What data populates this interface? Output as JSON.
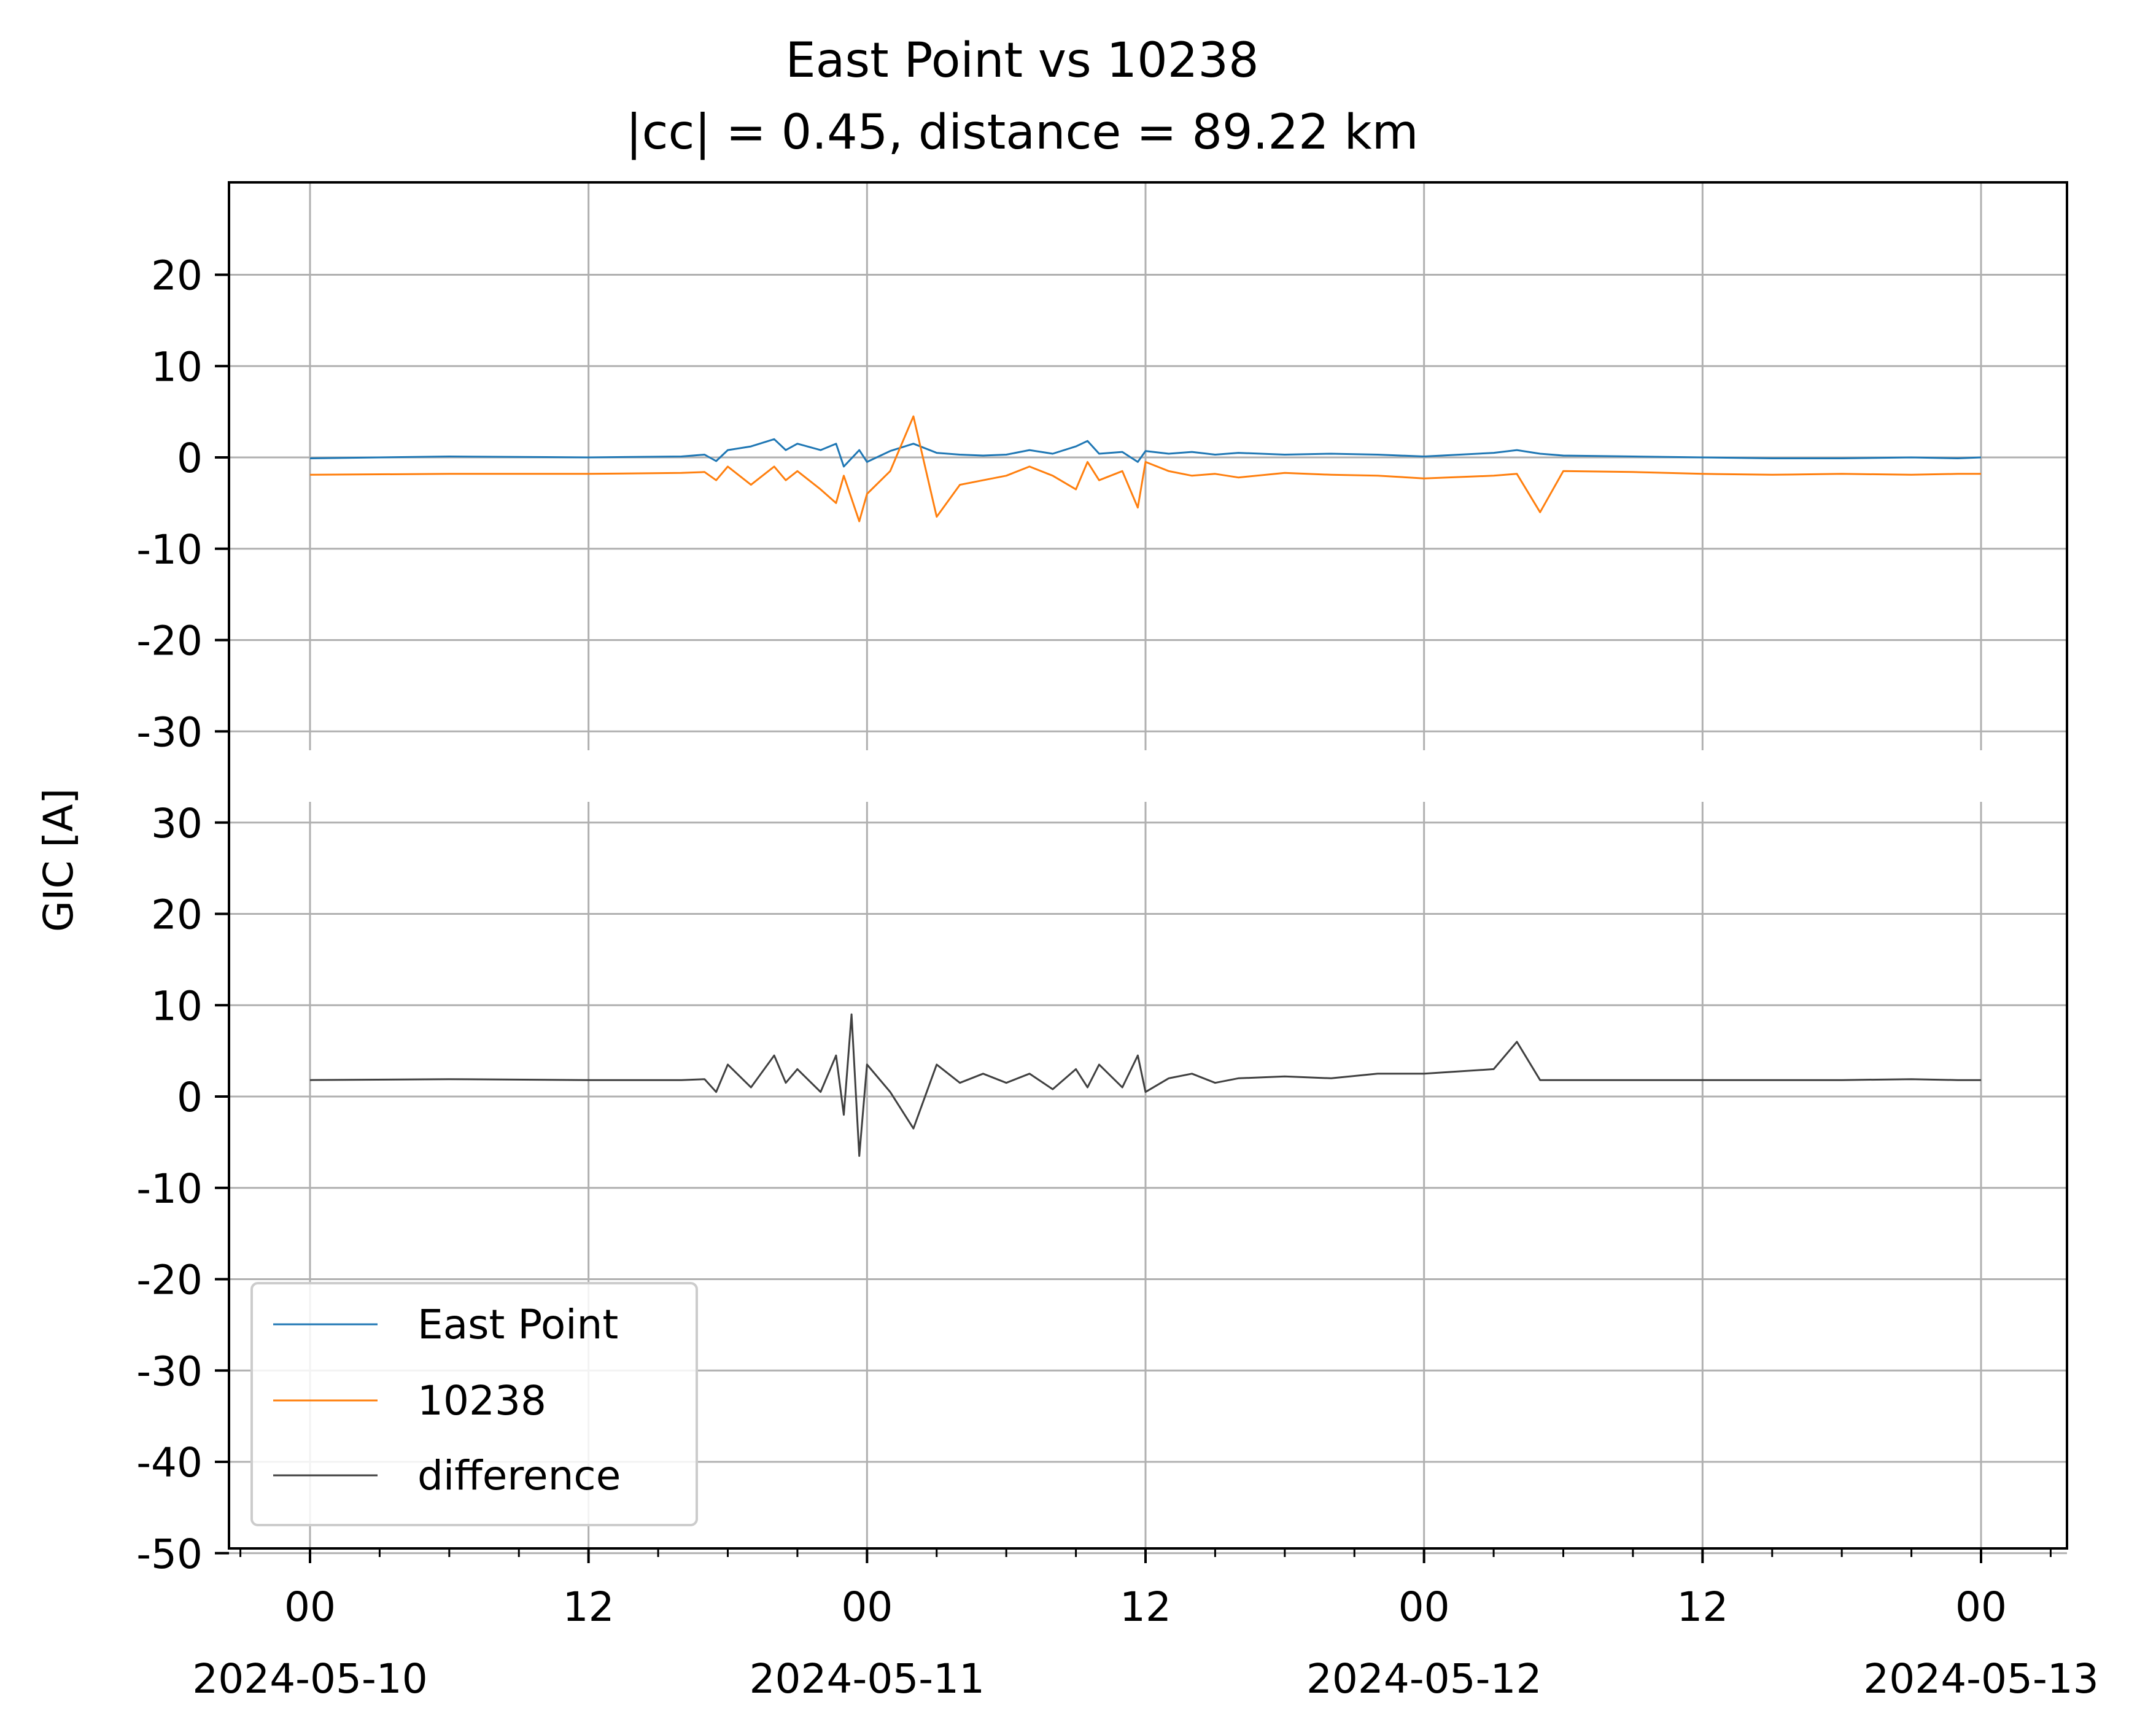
{
  "chart_data": {
    "type": "line",
    "title": "East Point vs 10238",
    "subtitle": "|cc| = 0.45, distance = 89.22 km",
    "ylabel": "GIC [A]",
    "x_range": [
      "2024-05-10 00:00",
      "2024-05-13 00:00"
    ],
    "x_major_ticks": [
      {
        "time": "2024-05-10 00:00",
        "label": "00",
        "date": "2024-05-10"
      },
      {
        "time": "2024-05-10 12:00",
        "label": "12",
        "date": ""
      },
      {
        "time": "2024-05-11 00:00",
        "label": "00",
        "date": "2024-05-11"
      },
      {
        "time": "2024-05-11 12:00",
        "label": "12",
        "date": ""
      },
      {
        "time": "2024-05-12 00:00",
        "label": "00",
        "date": "2024-05-12"
      },
      {
        "time": "2024-05-12 12:00",
        "label": "12",
        "date": ""
      },
      {
        "time": "2024-05-13 00:00",
        "label": "00",
        "date": "2024-05-13"
      }
    ],
    "grid": true,
    "legend_position": "lower-left",
    "panels": [
      {
        "ylim": [
          -30,
          30
        ],
        "yticks": [
          20,
          10,
          0,
          -10,
          -20,
          -30
        ],
        "ytick_labels": [
          "20",
          "10",
          "0",
          "-10",
          "-20",
          "-30"
        ],
        "series": [
          {
            "name": "East Point",
            "color": "#1f77b4",
            "x": [
              "2024-05-10 00:00",
              "2024-05-10 06:00",
              "2024-05-10 12:00",
              "2024-05-10 16:00",
              "2024-05-10 17:00",
              "2024-05-10 17:30",
              "2024-05-10 18:00",
              "2024-05-10 19:00",
              "2024-05-10 20:00",
              "2024-05-10 20:30",
              "2024-05-10 21:00",
              "2024-05-10 22:00",
              "2024-05-10 22:40",
              "2024-05-10 23:00",
              "2024-05-10 23:40",
              "2024-05-11 00:00",
              "2024-05-11 01:00",
              "2024-05-11 02:00",
              "2024-05-11 03:00",
              "2024-05-11 04:00",
              "2024-05-11 05:00",
              "2024-05-11 06:00",
              "2024-05-11 07:00",
              "2024-05-11 08:00",
              "2024-05-11 09:00",
              "2024-05-11 09:30",
              "2024-05-11 10:00",
              "2024-05-11 11:00",
              "2024-05-11 11:40",
              "2024-05-11 12:00",
              "2024-05-11 13:00",
              "2024-05-11 14:00",
              "2024-05-11 15:00",
              "2024-05-11 16:00",
              "2024-05-11 18:00",
              "2024-05-11 20:00",
              "2024-05-11 22:00",
              "2024-05-12 00:00",
              "2024-05-12 03:00",
              "2024-05-12 04:00",
              "2024-05-12 05:00",
              "2024-05-12 06:00",
              "2024-05-12 09:00",
              "2024-05-12 12:00",
              "2024-05-12 15:00",
              "2024-05-12 18:00",
              "2024-05-12 21:00",
              "2024-05-12 23:00",
              "2024-05-13 00:00"
            ],
            "y": [
              -0.1,
              0.1,
              0.0,
              0.1,
              0.3,
              -0.4,
              0.8,
              1.2,
              2.0,
              0.8,
              1.5,
              0.8,
              1.5,
              -1.0,
              0.8,
              -0.5,
              0.7,
              1.5,
              0.5,
              0.3,
              0.2,
              0.3,
              0.8,
              0.4,
              1.2,
              1.8,
              0.4,
              0.6,
              -0.5,
              0.7,
              0.4,
              0.6,
              0.3,
              0.5,
              0.3,
              0.4,
              0.3,
              0.1,
              0.5,
              0.8,
              0.4,
              0.2,
              0.1,
              0.0,
              -0.1,
              -0.1,
              0.0,
              -0.1,
              0.0
            ]
          },
          {
            "name": "10238",
            "color": "#ff7f0e",
            "x": [
              "2024-05-10 00:00",
              "2024-05-10 06:00",
              "2024-05-10 12:00",
              "2024-05-10 16:00",
              "2024-05-10 17:00",
              "2024-05-10 17:30",
              "2024-05-10 18:00",
              "2024-05-10 19:00",
              "2024-05-10 20:00",
              "2024-05-10 20:30",
              "2024-05-10 21:00",
              "2024-05-10 22:00",
              "2024-05-10 22:40",
              "2024-05-10 23:00",
              "2024-05-10 23:40",
              "2024-05-11 00:00",
              "2024-05-11 01:00",
              "2024-05-11 02:00",
              "2024-05-11 03:00",
              "2024-05-11 04:00",
              "2024-05-11 05:00",
              "2024-05-11 06:00",
              "2024-05-11 07:00",
              "2024-05-11 08:00",
              "2024-05-11 09:00",
              "2024-05-11 09:30",
              "2024-05-11 10:00",
              "2024-05-11 11:00",
              "2024-05-11 11:40",
              "2024-05-11 12:00",
              "2024-05-11 13:00",
              "2024-05-11 14:00",
              "2024-05-11 15:00",
              "2024-05-11 16:00",
              "2024-05-11 18:00",
              "2024-05-11 20:00",
              "2024-05-11 22:00",
              "2024-05-12 00:00",
              "2024-05-12 03:00",
              "2024-05-12 04:00",
              "2024-05-12 05:00",
              "2024-05-12 06:00",
              "2024-05-12 09:00",
              "2024-05-12 12:00",
              "2024-05-12 15:00",
              "2024-05-12 18:00",
              "2024-05-12 21:00",
              "2024-05-12 23:00",
              "2024-05-13 00:00"
            ],
            "y": [
              -1.9,
              -1.8,
              -1.8,
              -1.7,
              -1.6,
              -2.5,
              -1.0,
              -3.0,
              -1.0,
              -2.5,
              -1.5,
              -3.5,
              -5.0,
              -2.0,
              -7.0,
              -4.0,
              -1.5,
              4.5,
              -6.5,
              -3.0,
              -2.5,
              -2.0,
              -1.0,
              -2.0,
              -3.5,
              -0.5,
              -2.5,
              -1.5,
              -5.5,
              -0.5,
              -1.5,
              -2.0,
              -1.8,
              -2.2,
              -1.7,
              -1.9,
              -2.0,
              -2.3,
              -2.0,
              -1.8,
              -6.0,
              -1.5,
              -1.6,
              -1.8,
              -1.9,
              -1.8,
              -1.9,
              -1.8,
              -1.8
            ]
          }
        ]
      },
      {
        "ylim": [
          -50,
          35
        ],
        "yticks": [
          30,
          20,
          10,
          0,
          -10,
          -20,
          -30,
          -40,
          -50
        ],
        "ytick_labels": [
          "30",
          "20",
          "10",
          "0",
          "-10",
          "-20",
          "-30",
          "-40",
          "-50"
        ],
        "series": [
          {
            "name": "difference",
            "color": "#404040",
            "x": [
              "2024-05-10 00:00",
              "2024-05-10 06:00",
              "2024-05-10 12:00",
              "2024-05-10 16:00",
              "2024-05-10 17:00",
              "2024-05-10 17:30",
              "2024-05-10 18:00",
              "2024-05-10 19:00",
              "2024-05-10 20:00",
              "2024-05-10 20:30",
              "2024-05-10 21:00",
              "2024-05-10 22:00",
              "2024-05-10 22:40",
              "2024-05-10 23:00",
              "2024-05-10 23:20",
              "2024-05-10 23:40",
              "2024-05-11 00:00",
              "2024-05-11 01:00",
              "2024-05-11 02:00",
              "2024-05-11 03:00",
              "2024-05-11 04:00",
              "2024-05-11 05:00",
              "2024-05-11 06:00",
              "2024-05-11 07:00",
              "2024-05-11 08:00",
              "2024-05-11 09:00",
              "2024-05-11 09:30",
              "2024-05-11 10:00",
              "2024-05-11 11:00",
              "2024-05-11 11:40",
              "2024-05-11 12:00",
              "2024-05-11 13:00",
              "2024-05-11 14:00",
              "2024-05-11 15:00",
              "2024-05-11 16:00",
              "2024-05-11 18:00",
              "2024-05-11 20:00",
              "2024-05-11 22:00",
              "2024-05-12 00:00",
              "2024-05-12 03:00",
              "2024-05-12 04:00",
              "2024-05-12 05:00",
              "2024-05-12 06:00",
              "2024-05-12 09:00",
              "2024-05-12 12:00",
              "2024-05-12 15:00",
              "2024-05-12 18:00",
              "2024-05-12 21:00",
              "2024-05-12 23:00",
              "2024-05-13 00:00"
            ],
            "y": [
              1.8,
              1.9,
              1.8,
              1.8,
              1.9,
              0.5,
              3.5,
              1.0,
              4.5,
              1.5,
              3.0,
              0.5,
              4.5,
              -2.0,
              9.0,
              -6.5,
              3.5,
              0.5,
              -3.5,
              3.5,
              1.5,
              2.5,
              1.5,
              2.5,
              0.8,
              3.0,
              1.0,
              3.5,
              1.0,
              4.5,
              0.5,
              2.0,
              2.5,
              1.5,
              2.0,
              2.2,
              2.0,
              2.5,
              2.5,
              3.0,
              6.0,
              1.8,
              1.8,
              1.8,
              1.8,
              1.8,
              1.8,
              1.9,
              1.8,
              1.8
            ]
          }
        ]
      }
    ]
  }
}
